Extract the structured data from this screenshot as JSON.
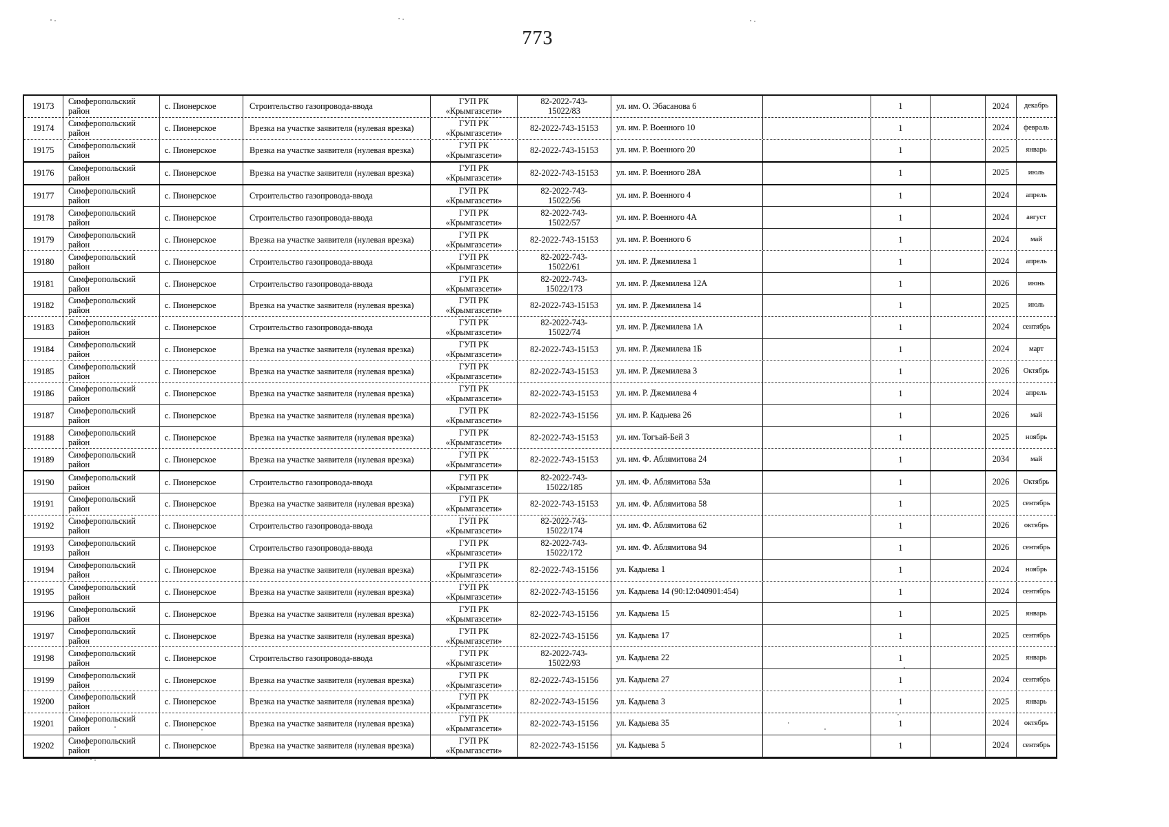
{
  "page": {
    "number": "773"
  },
  "table": {
    "rows": [
      {
        "num": "19173",
        "district": "Симферопольский район",
        "settlement": "с. Пионерское",
        "work": "Строительство газопровода-ввода",
        "org": "ГУП РК «Крымгазсети»",
        "contract": "82-2022-743-15022/83",
        "address": "ул. им. О. Эбасанова 6",
        "count": "1",
        "year": "2024",
        "month": "декабрь"
      },
      {
        "num": "19174",
        "district": "Симферопольский район",
        "settlement": "с. Пионерское",
        "work": "Врезка на участке заявителя (нулевая врезка)",
        "org": "ГУП РК «Крымгазсети»",
        "contract": "82-2022-743-15153",
        "address": "ул. им. Р. Военного 10",
        "count": "1",
        "year": "2024",
        "month": "февраль"
      },
      {
        "num": "19175",
        "district": "Симферопольский район",
        "settlement": "с. Пионерское",
        "work": "Врезка на участке заявителя (нулевая врезка)",
        "org": "ГУП РК «Крымгазсети»",
        "contract": "82-2022-743-15153",
        "address": "ул. им. Р. Военного 20",
        "count": "1",
        "year": "2025",
        "month": "январь"
      },
      {
        "num": "19176",
        "district": "Симферопольский район",
        "settlement": "с. Пионерское",
        "work": "Врезка на участке заявителя (нулевая врезка)",
        "org": "ГУП РК «Крымгазсети»",
        "contract": "82-2022-743-15153",
        "address": "ул. им. Р. Военного 28А",
        "count": "1",
        "year": "2025",
        "month": "июль"
      },
      {
        "num": "19177",
        "district": "Симферопольский район",
        "settlement": "с. Пионерское",
        "work": "Строительство газопровода-ввода",
        "org": "ГУП РК «Крымгазсети»",
        "contract": "82-2022-743-15022/56",
        "address": "ул. им. Р. Военного 4",
        "count": "1",
        "year": "2024",
        "month": "апрель"
      },
      {
        "num": "19178",
        "district": "Симферопольский район",
        "settlement": "с. Пионерское",
        "work": "Строительство газопровода-ввода",
        "org": "ГУП РК «Крымгазсети»",
        "contract": "82-2022-743-15022/57",
        "address": "ул. им. Р. Военного 4А",
        "count": "1",
        "year": "2024",
        "month": "август"
      },
      {
        "num": "19179",
        "district": "Симферопольский район",
        "settlement": "с. Пионерское",
        "work": "Врезка на участке заявителя (нулевая врезка)",
        "org": "ГУП РК «Крымгазсети»",
        "contract": "82-2022-743-15153",
        "address": "ул. им. Р. Военного 6",
        "count": "1",
        "year": "2024",
        "month": "май"
      },
      {
        "num": "19180",
        "district": "Симферопольский район",
        "settlement": "с. Пионерское",
        "work": "Строительство газопровода-ввода",
        "org": "ГУП РК «Крымгазсети»",
        "contract": "82-2022-743-15022/61",
        "address": "ул. им. Р. Джемилева 1",
        "count": "1",
        "year": "2024",
        "month": "апрель"
      },
      {
        "num": "19181",
        "district": "Симферопольский район",
        "settlement": "с. Пионерское",
        "work": "Строительство газопровода-ввода",
        "org": "ГУП РК «Крымгазсети»",
        "contract": "82-2022-743-15022/173",
        "address": "ул. им. Р. Джемилева 12А",
        "count": "1",
        "year": "2026",
        "month": "июнь"
      },
      {
        "num": "19182",
        "district": "Симферопольский район",
        "settlement": "с. Пионерское",
        "work": "Врезка на участке заявителя (нулевая врезка)",
        "org": "ГУП РК «Крымгазсети»",
        "contract": "82-2022-743-15153",
        "address": "ул. им. Р. Джемилева 14",
        "count": "1",
        "year": "2025",
        "month": "июль"
      },
      {
        "num": "19183",
        "district": "Симферопольский район",
        "settlement": "с. Пионерское",
        "work": "Строительство газопровода-ввода",
        "org": "ГУП РК «Крымгазсети»",
        "contract": "82-2022-743-15022/74",
        "address": "ул. им. Р. Джемилева 1А",
        "count": "1",
        "year": "2024",
        "month": "сентябрь"
      },
      {
        "num": "19184",
        "district": "Симферопольский район",
        "settlement": "с. Пионерское",
        "work": "Врезка на участке заявителя (нулевая врезка)",
        "org": "ГУП РК «Крымгазсети»",
        "contract": "82-2022-743-15153",
        "address": "ул. им. Р. Джемилева 1Б",
        "count": "1",
        "year": "2024",
        "month": "март"
      },
      {
        "num": "19185",
        "district": "Симферопольский район",
        "settlement": "с. Пионерское",
        "work": "Врезка на участке заявителя (нулевая врезка)",
        "org": "ГУП РК «Крымгазсети»",
        "contract": "82-2022-743-15153",
        "address": "ул. им. Р. Джемилева 3",
        "count": "1",
        "year": "2026",
        "month": "Октябрь"
      },
      {
        "num": "19186",
        "district": "Симферопольский район",
        "settlement": "с. Пионерское",
        "work": "Врезка на участке заявителя (нулевая врезка)",
        "org": "ГУП РК «Крымгазсети»",
        "contract": "82-2022-743-15153",
        "address": "ул. им. Р. Джемилева 4",
        "count": "1",
        "year": "2024",
        "month": "апрель"
      },
      {
        "num": "19187",
        "district": "Симферопольский район",
        "settlement": "с. Пионерское",
        "work": "Врезка на участке заявителя (нулевая врезка)",
        "org": "ГУП РК «Крымгазсети»",
        "contract": "82-2022-743-15156",
        "address": "ул. им. Р. Кадыева 26",
        "count": "1",
        "year": "2026",
        "month": "май"
      },
      {
        "num": "19188",
        "district": "Симферопольский район",
        "settlement": "с. Пионерское",
        "work": "Врезка на участке заявителя (нулевая врезка)",
        "org": "ГУП РК «Крымгазсети»",
        "contract": "82-2022-743-15153",
        "address": "ул. им. Тогъай-Бей 3",
        "count": "1",
        "year": "2025",
        "month": "ноябрь"
      },
      {
        "num": "19189",
        "district": "Симферопольский район",
        "settlement": "с. Пионерское",
        "work": "Врезка на участке заявителя (нулевая врезка)",
        "org": "ГУП РК «Крымгазсети»",
        "contract": "82-2022-743-15153",
        "address": "ул. им. Ф. Аблямитова 24",
        "count": "1",
        "year": "2034",
        "month": "май"
      },
      {
        "num": "19190",
        "district": "Симферопольский район",
        "settlement": "с. Пионерское",
        "work": "Строительство газопровода-ввода",
        "org": "ГУП РК «Крымгазсети»",
        "contract": "82-2022-743-15022/185",
        "address": "ул. им. Ф. Аблямитова 53а",
        "count": "1",
        "year": "2026",
        "month": "Октябрь"
      },
      {
        "num": "19191",
        "district": "Симферопольский район",
        "settlement": "с. Пионерское",
        "work": "Врезка на участке заявителя (нулевая врезка)",
        "org": "ГУП РК «Крымгазсети»",
        "contract": "82-2022-743-15153",
        "address": "ул. им. Ф. Аблямитова 58",
        "count": "1",
        "year": "2025",
        "month": "сентябрь"
      },
      {
        "num": "19192",
        "district": "Симферопольский район",
        "settlement": "с. Пионерское",
        "work": "Строительство газопровода-ввода",
        "org": "ГУП РК «Крымгазсети»",
        "contract": "82-2022-743-15022/174",
        "address": "ул. им. Ф. Аблямитова 62",
        "count": "1",
        "year": "2026",
        "month": "октябрь"
      },
      {
        "num": "19193",
        "district": "Симферопольский район",
        "settlement": "с. Пионерское",
        "work": "Строительство газопровода-ввода",
        "org": "ГУП РК «Крымгазсети»",
        "contract": "82-2022-743-15022/172",
        "address": "ул. им. Ф. Аблямитова 94",
        "count": "1",
        "year": "2026",
        "month": "сентябрь"
      },
      {
        "num": "19194",
        "district": "Симферопольский район",
        "settlement": "с. Пионерское",
        "work": "Врезка на участке заявителя (нулевая врезка)",
        "org": "ГУП РК «Крымгазсети»",
        "contract": "82-2022-743-15156",
        "address": "ул. Кадыева 1",
        "count": "1",
        "year": "2024",
        "month": "ноябрь"
      },
      {
        "num": "19195",
        "district": "Симферопольский район",
        "settlement": "с. Пионерское",
        "work": "Врезка на участке заявителя (нулевая врезка)",
        "org": "ГУП РК «Крымгазсети»",
        "contract": "82-2022-743-15156",
        "address": "ул. Кадыева 14 (90:12:040901:454)",
        "count": "1",
        "year": "2024",
        "month": "сентябрь"
      },
      {
        "num": "19196",
        "district": "Симферопольский район",
        "settlement": "с. Пионерское",
        "work": "Врезка на участке заявителя (нулевая врезка)",
        "org": "ГУП РК «Крымгазсети»",
        "contract": "82-2022-743-15156",
        "address": "ул. Кадыева 15",
        "count": "1",
        "year": "2025",
        "month": "январь"
      },
      {
        "num": "19197",
        "district": "Симферопольский район",
        "settlement": "с. Пионерское",
        "work": "Врезка на участке заявителя (нулевая врезка)",
        "org": "ГУП РК «Крымгазсети»",
        "contract": "82-2022-743-15156",
        "address": "ул. Кадыева 17",
        "count": "1",
        "year": "2025",
        "month": "сентябрь"
      },
      {
        "num": "19198",
        "district": "Симферопольский район",
        "settlement": "с. Пионерское",
        "work": "Строительство газопровода-ввода",
        "org": "ГУП РК «Крымгазсети»",
        "contract": "82-2022-743-15022/93",
        "address": "ул. Кадыева 22",
        "count": "1",
        "year": "2025",
        "month": "январь"
      },
      {
        "num": "19199",
        "district": "Симферопольский район",
        "settlement": "с. Пионерское",
        "work": "Врезка на участке заявителя (нулевая врезка)",
        "org": "ГУП РК «Крымгазсети»",
        "contract": "82-2022-743-15156",
        "address": "ул. Кадыева 27",
        "count": "1",
        "year": "2024",
        "month": "сентябрь"
      },
      {
        "num": "19200",
        "district": "Симферопольский район",
        "settlement": "с. Пионерское",
        "work": "Врезка на участке заявителя (нулевая врезка)",
        "org": "ГУП РК «Крымгазсети»",
        "contract": "82-2022-743-15156",
        "address": "ул. Кадыева 3",
        "count": "1",
        "year": "2025",
        "month": "январь"
      },
      {
        "num": "19201",
        "district": "Симферопольский район",
        "settlement": "с. Пионерское",
        "work": "Врезка на участке заявителя (нулевая врезка)",
        "org": "ГУП РК «Крымгазсети»",
        "contract": "82-2022-743-15156",
        "address": "ул. Кадыева 35",
        "count": "1",
        "year": "2024",
        "month": "октябрь"
      },
      {
        "num": "19202",
        "district": "Симферопольский район",
        "settlement": "с. Пионерское",
        "work": "Врезка на участке заявителя (нулевая врезка)",
        "org": "ГУП РК «Крымгазсети»",
        "contract": "82-2022-743-15156",
        "address": "ул. Кадыева 5",
        "count": "1",
        "year": "2024",
        "month": "сентябрь"
      }
    ]
  }
}
